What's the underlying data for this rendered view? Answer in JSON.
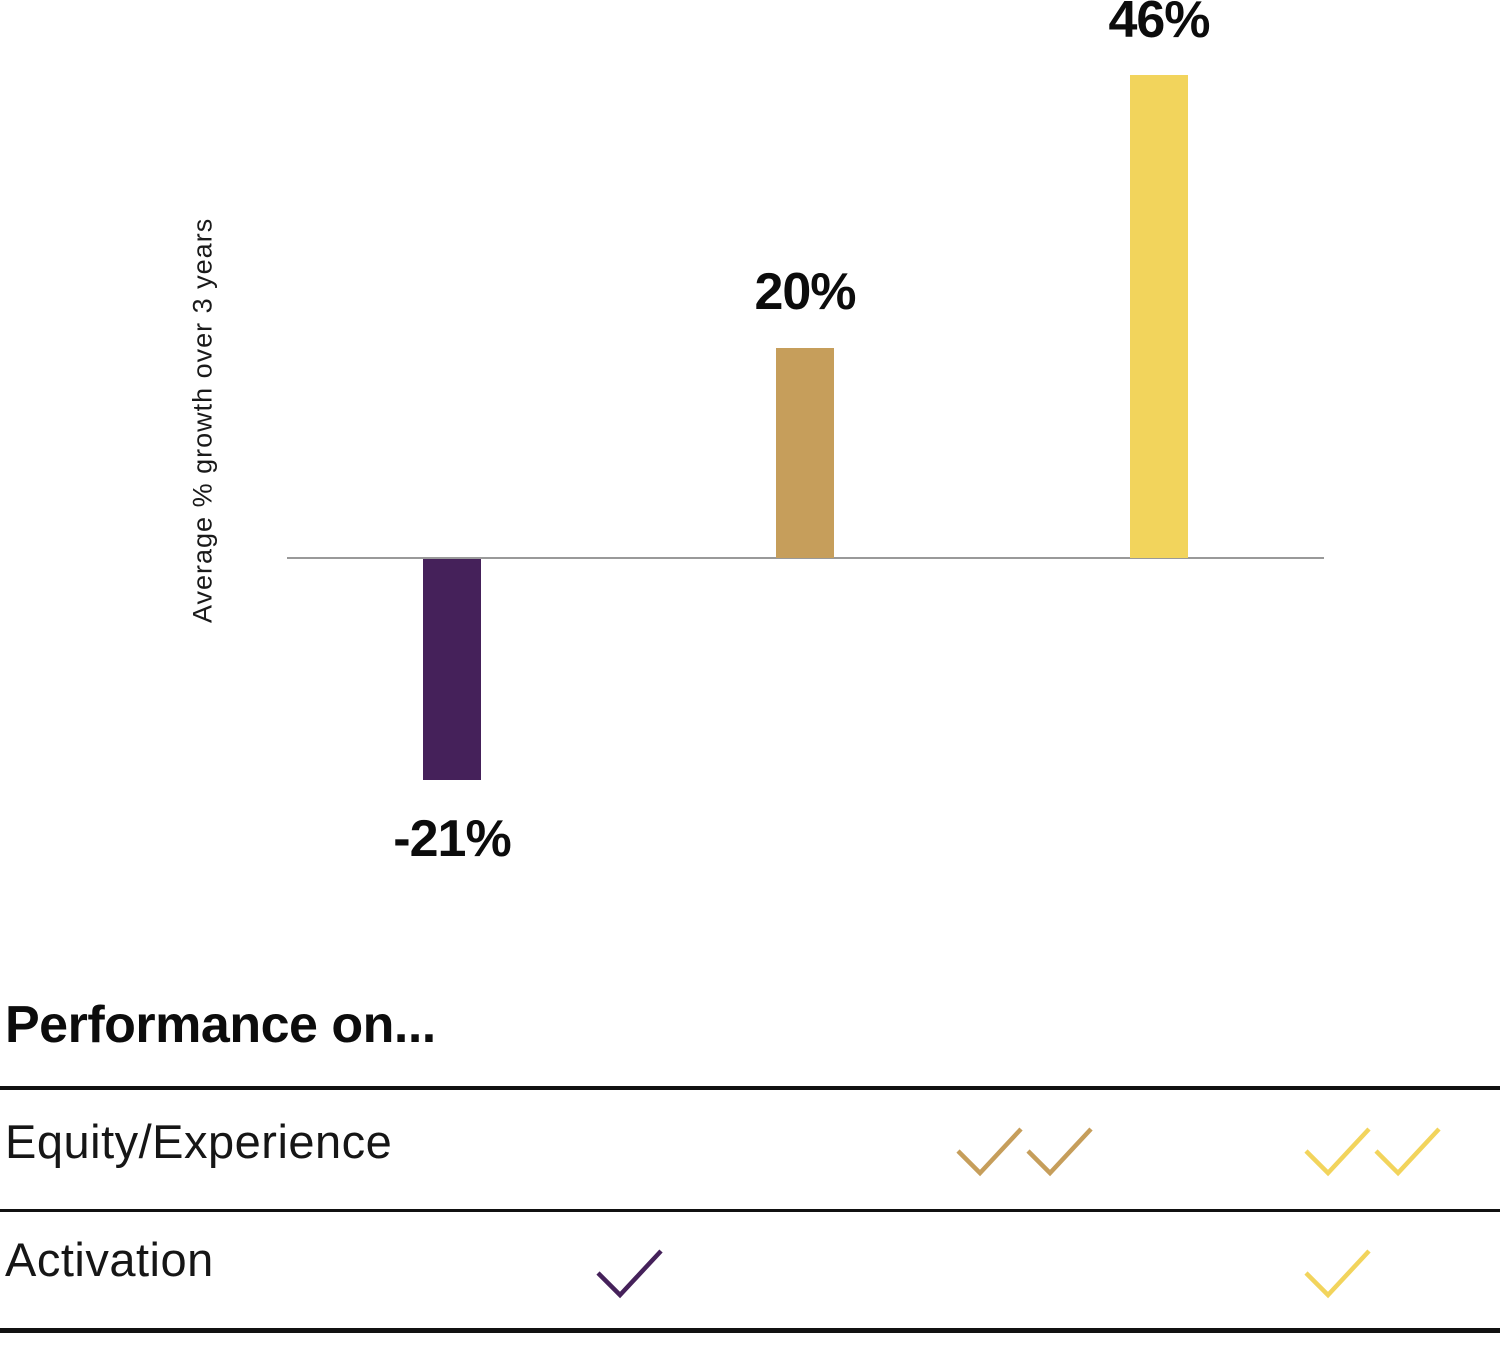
{
  "chart_data": {
    "type": "bar",
    "title": "",
    "xlabel": "",
    "ylabel": "Average % growth over 3 years",
    "categories": [
      "",
      "",
      ""
    ],
    "values": [
      -21,
      20,
      46
    ],
    "bars": [
      {
        "value": -21,
        "data_label": "-21%",
        "color": "#45215A"
      },
      {
        "value": 20,
        "data_label": "20%",
        "color": "#C69E5B"
      },
      {
        "value": 46,
        "data_label": "46%",
        "color": "#F2D45C"
      }
    ],
    "axis_color": "#999999",
    "grid": "off",
    "legend": "none",
    "baseline": 0
  },
  "table": {
    "heading": "Performance on...",
    "rows": [
      {
        "label": "Equity/Experience",
        "checks": [
          {
            "column": 2,
            "count": 2,
            "color": "#C69E5B",
            "name": "tan-double-check"
          },
          {
            "column": 3,
            "count": 2,
            "color": "#F2D45C",
            "name": "yellow-double-check"
          }
        ]
      },
      {
        "label": "Activation",
        "checks": [
          {
            "column": 1,
            "count": 1,
            "color": "#45215A",
            "name": "purple-check"
          },
          {
            "column": 3,
            "count": 1,
            "color": "#F2D45C",
            "name": "yellow-check"
          }
        ]
      }
    ]
  },
  "colors": {
    "purple": "#45215A",
    "tan": "#C69E5B",
    "yellow": "#F2D45C",
    "axis": "#999999",
    "text": "#111111"
  }
}
